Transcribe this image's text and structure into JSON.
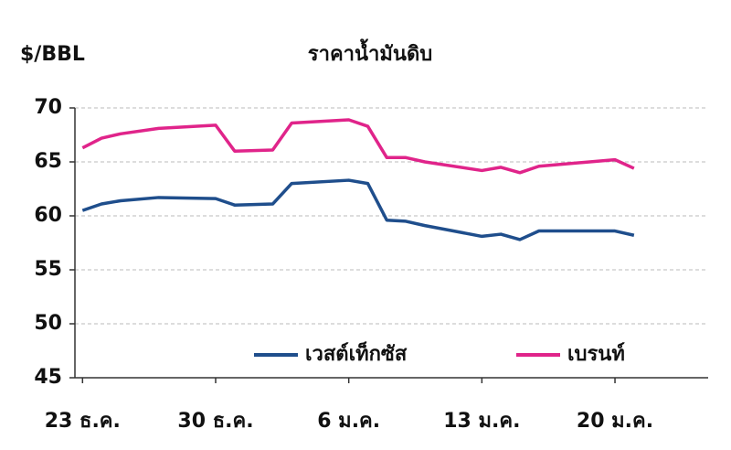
{
  "chart_data": {
    "type": "line",
    "title": "ราคาน้ำมันดิบ",
    "y_label": "$/BBL",
    "x": [
      0,
      1,
      2,
      4,
      7,
      8,
      10,
      11,
      14,
      15,
      16,
      17,
      18,
      21,
      22,
      23,
      24,
      28,
      29
    ],
    "xlim": [
      -0.4,
      32.9
    ],
    "xticks": [
      {
        "value": 0,
        "label": "23 ธ.ค."
      },
      {
        "value": 7,
        "label": "30 ธ.ค."
      },
      {
        "value": 14,
        "label": "6 ม.ค."
      },
      {
        "value": 21,
        "label": "13 ม.ค."
      },
      {
        "value": 28,
        "label": "20 ม.ค."
      }
    ],
    "ylim": [
      45,
      70
    ],
    "yticks": [
      45,
      50,
      55,
      60,
      65,
      70
    ],
    "grid": true,
    "legend": "bottom",
    "series": [
      {
        "name": "เวสต์เท็กซัส",
        "color": "#1f4e8c",
        "values": [
          60.5,
          61.1,
          61.4,
          61.7,
          61.6,
          61.0,
          61.1,
          63.0,
          63.3,
          63.0,
          59.6,
          59.5,
          59.1,
          58.1,
          58.3,
          57.8,
          58.6,
          58.6,
          58.2
        ]
      },
      {
        "name": "เบรนท์",
        "color": "#e0248a",
        "values": [
          66.3,
          67.2,
          67.6,
          68.1,
          68.4,
          66.0,
          66.1,
          68.6,
          68.9,
          68.3,
          65.4,
          65.4,
          65.0,
          64.2,
          64.5,
          64.0,
          64.6,
          65.2,
          64.4
        ]
      }
    ]
  }
}
